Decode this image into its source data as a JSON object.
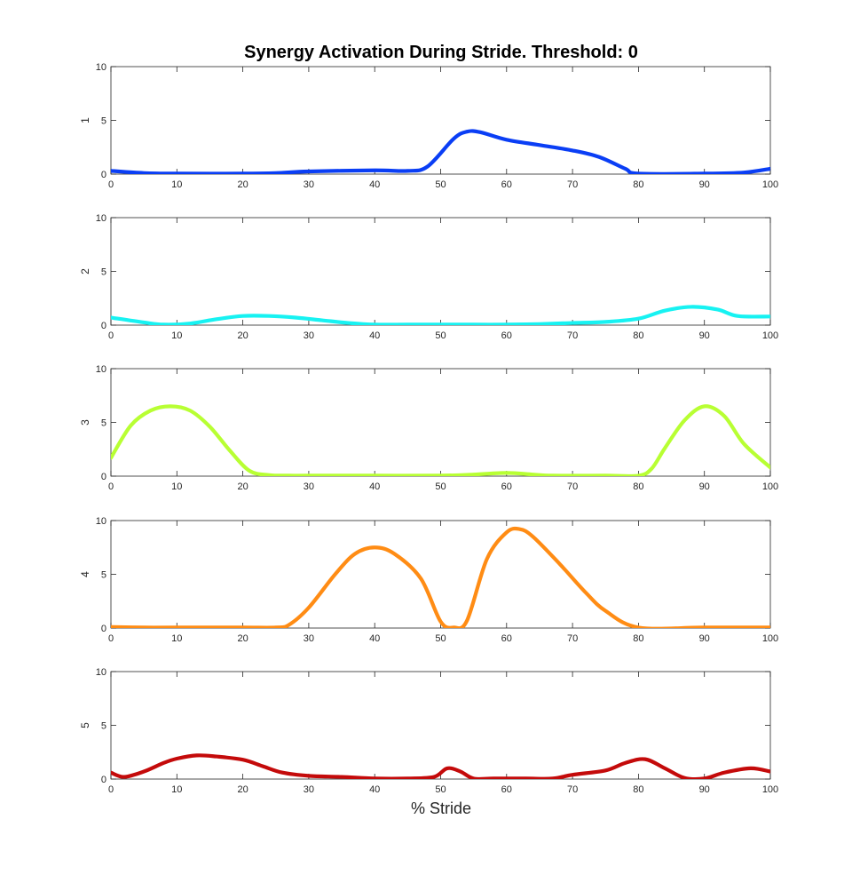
{
  "figure": {
    "title": "Synergy Activation During Stride. Threshold: 0",
    "xlabel": "% Stride"
  },
  "chart_data": {
    "type": "line",
    "title": "Synergy Activation During Stride. Threshold: 0",
    "xlabel": "% Stride",
    "xlim": [
      0,
      100
    ],
    "ylim": [
      0,
      10
    ],
    "x_ticks": [
      "0",
      "10",
      "20",
      "30",
      "40",
      "50",
      "60",
      "70",
      "80",
      "90",
      "100"
    ],
    "y_ticks": [
      "0",
      "5",
      "10"
    ],
    "panels": [
      {
        "ylabel": "1",
        "color": "#0a3ef5",
        "x": [
          0,
          5,
          10,
          20,
          25,
          30,
          40,
          45,
          48,
          52,
          54,
          56,
          60,
          65,
          70,
          74,
          78,
          80,
          90,
          96,
          100
        ],
        "y": [
          0.3,
          0.1,
          0.05,
          0.05,
          0.1,
          0.25,
          0.35,
          0.3,
          0.7,
          3.3,
          3.95,
          3.9,
          3.2,
          2.7,
          2.2,
          1.6,
          0.5,
          0.05,
          0.05,
          0.15,
          0.5
        ]
      },
      {
        "ylabel": "2",
        "color": "#17f2f2",
        "x": [
          0,
          5,
          8,
          12,
          16,
          20,
          24,
          28,
          32,
          36,
          40,
          45,
          50,
          55,
          60,
          65,
          70,
          75,
          80,
          84,
          88,
          92,
          95,
          100
        ],
        "y": [
          0.7,
          0.25,
          0.05,
          0.15,
          0.55,
          0.85,
          0.85,
          0.7,
          0.45,
          0.2,
          0.05,
          0.05,
          0.05,
          0.05,
          0.05,
          0.1,
          0.2,
          0.3,
          0.6,
          1.35,
          1.7,
          1.45,
          0.85,
          0.8
        ]
      },
      {
        "ylabel": "3",
        "color": "#b8ff33",
        "x": [
          0,
          3,
          6,
          9,
          12,
          15,
          18,
          21,
          24,
          27,
          30,
          40,
          50,
          55,
          60,
          64,
          67,
          75,
          80,
          82,
          84,
          87,
          90,
          93,
          96,
          100
        ],
        "y": [
          1.7,
          4.7,
          6.1,
          6.5,
          6.1,
          4.6,
          2.4,
          0.5,
          0.1,
          0.05,
          0.05,
          0.05,
          0.05,
          0.15,
          0.3,
          0.15,
          0.05,
          0.05,
          0.05,
          0.7,
          2.6,
          5.2,
          6.5,
          5.6,
          3.0,
          0.8
        ]
      },
      {
        "ylabel": "4",
        "color": "#ff8c14",
        "x": [
          0,
          5,
          10,
          20,
          25,
          27,
          30,
          34,
          37,
          40,
          43,
          47,
          50,
          52,
          54,
          57,
          60,
          62,
          64,
          68,
          72,
          75,
          80,
          90,
          100
        ],
        "y": [
          0.1,
          0.05,
          0.05,
          0.05,
          0.05,
          0.3,
          1.9,
          5.0,
          6.9,
          7.5,
          6.9,
          4.6,
          0.6,
          0.05,
          0.7,
          6.4,
          8.9,
          9.2,
          8.5,
          6.0,
          3.3,
          1.6,
          0.05,
          0.05,
          0.05
        ]
      },
      {
        "ylabel": "5",
        "color": "#c40a0a",
        "x": [
          0,
          2,
          5,
          8,
          10,
          13,
          16,
          20,
          23,
          26,
          30,
          35,
          40,
          45,
          49,
          51,
          53,
          55,
          58,
          63,
          67,
          70,
          75,
          78,
          81,
          84,
          87,
          90,
          93,
          97,
          100
        ],
        "y": [
          0.6,
          0.2,
          0.7,
          1.5,
          1.9,
          2.2,
          2.1,
          1.8,
          1.2,
          0.6,
          0.3,
          0.2,
          0.05,
          0.05,
          0.2,
          1.0,
          0.7,
          0.05,
          0.05,
          0.05,
          0.05,
          0.4,
          0.8,
          1.5,
          1.85,
          1.0,
          0.1,
          0.05,
          0.6,
          1.0,
          0.7
        ]
      }
    ]
  }
}
